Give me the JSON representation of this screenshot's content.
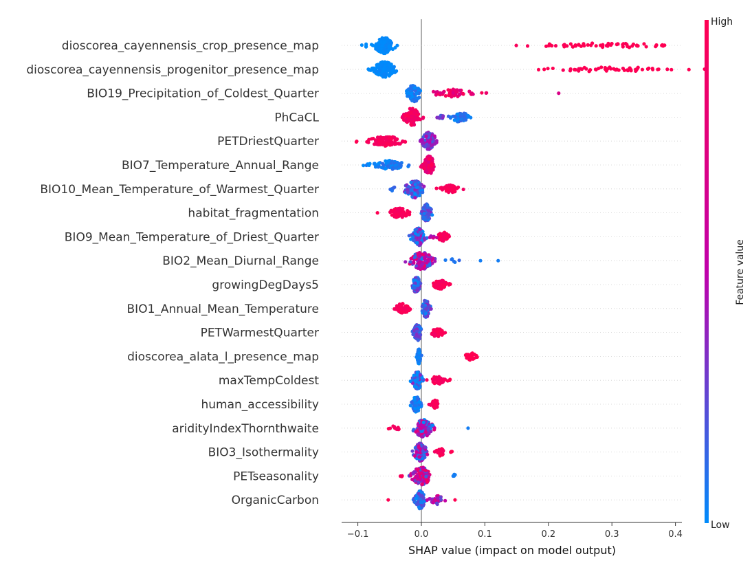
{
  "chart_data": {
    "type": "scatter",
    "subtype": "shap-beeswarm",
    "xlabel": "SHAP value (impact on model output)",
    "xlim": [
      -0.125,
      0.41
    ],
    "xticks": [
      -0.1,
      0.0,
      0.1,
      0.2,
      0.3,
      0.4
    ],
    "xtick_labels": [
      "−0.1",
      "0.0",
      "0.1",
      "0.2",
      "0.3",
      "0.4"
    ],
    "colorbar": {
      "label": "Feature value",
      "high": "High",
      "low": "Low",
      "low_color": "#008bfb",
      "high_color": "#ff0052"
    },
    "features": [
      {
        "name": "dioscorea_cayennensis_crop_presence_map",
        "clusters": [
          {
            "x": -0.058,
            "spread": 0.012,
            "n": 140,
            "color": 0.0,
            "cjit": 0.03,
            "height": 0.9
          },
          {
            "x": 0.29,
            "spread": 0.095,
            "n": 60,
            "color": 1.0,
            "cjit": 0.05,
            "height": 0.25
          },
          {
            "x": -0.08,
            "spread": 0.015,
            "n": 6,
            "color": 0.0,
            "cjit": 0.0,
            "height": 0.2
          },
          {
            "x": 0.378,
            "spread": 0.006,
            "n": 3,
            "color": 1.0,
            "cjit": 0.0,
            "height": 0.1
          }
        ]
      },
      {
        "name": "dioscorea_cayennensis_progenitor_presence_map",
        "clusters": [
          {
            "x": -0.058,
            "spread": 0.013,
            "n": 140,
            "color": 0.0,
            "cjit": 0.03,
            "height": 0.9
          },
          {
            "x": 0.29,
            "spread": 0.093,
            "n": 60,
            "color": 1.0,
            "cjit": 0.05,
            "height": 0.25
          },
          {
            "x": -0.082,
            "spread": 0.006,
            "n": 4,
            "color": 0.0,
            "cjit": 0.0,
            "height": 0.15
          }
        ]
      },
      {
        "name": "BIO19_Precipitation_of_Coldest_Quarter",
        "clusters": [
          {
            "x": -0.012,
            "spread": 0.008,
            "n": 90,
            "color": 0.05,
            "cjit": 0.08,
            "height": 1.0
          },
          {
            "x": 0.05,
            "spread": 0.025,
            "n": 55,
            "color": 0.85,
            "cjit": 0.15,
            "height": 0.45
          },
          {
            "x": 0.103,
            "spread": 0.003,
            "n": 2,
            "color": 0.85,
            "cjit": 0.0,
            "height": 0.1
          },
          {
            "x": 0.217,
            "spread": 0.001,
            "n": 1,
            "color": 0.7,
            "cjit": 0.0,
            "height": 0.0
          }
        ]
      },
      {
        "name": "PhCaCL",
        "clusters": [
          {
            "x": -0.015,
            "spread": 0.01,
            "n": 100,
            "color": 0.9,
            "cjit": 0.1,
            "height": 1.0
          },
          {
            "x": 0.06,
            "spread": 0.012,
            "n": 55,
            "color": 0.08,
            "cjit": 0.08,
            "height": 0.55
          },
          {
            "x": 0.03,
            "spread": 0.01,
            "n": 8,
            "color": 0.3,
            "cjit": 0.15,
            "height": 0.2
          }
        ]
      },
      {
        "name": "PETDriestQuarter",
        "clusters": [
          {
            "x": -0.055,
            "spread": 0.022,
            "n": 90,
            "color": 0.95,
            "cjit": 0.05,
            "height": 0.55
          },
          {
            "x": 0.012,
            "spread": 0.009,
            "n": 110,
            "color": 0.3,
            "cjit": 0.2,
            "height": 1.0
          },
          {
            "x": -0.102,
            "spread": 0.003,
            "n": 2,
            "color": 1.0,
            "cjit": 0.0,
            "height": 0.15
          }
        ]
      },
      {
        "name": "BIO7_Temperature_Annual_Range",
        "clusters": [
          {
            "x": -0.05,
            "spread": 0.022,
            "n": 80,
            "color": 0.05,
            "cjit": 0.08,
            "height": 0.5
          },
          {
            "x": 0.012,
            "spread": 0.008,
            "n": 110,
            "color": 0.85,
            "cjit": 0.15,
            "height": 1.0
          },
          {
            "x": -0.083,
            "spread": 0.002,
            "n": 3,
            "color": 0.0,
            "cjit": 0.0,
            "height": 0.15
          }
        ]
      },
      {
        "name": "BIO10_Mean_Temperature_of_Warmest_Quarter",
        "clusters": [
          {
            "x": -0.01,
            "spread": 0.012,
            "n": 110,
            "color": 0.2,
            "cjit": 0.25,
            "height": 1.0
          },
          {
            "x": 0.045,
            "spread": 0.011,
            "n": 55,
            "color": 0.95,
            "cjit": 0.05,
            "height": 0.45
          },
          {
            "x": -0.045,
            "spread": 0.004,
            "n": 6,
            "color": 0.1,
            "cjit": 0.05,
            "height": 0.25
          }
        ]
      },
      {
        "name": "habitat_fragmentation",
        "clusters": [
          {
            "x": -0.035,
            "spread": 0.012,
            "n": 70,
            "color": 0.95,
            "cjit": 0.05,
            "height": 0.55
          },
          {
            "x": 0.008,
            "spread": 0.006,
            "n": 110,
            "color": 0.2,
            "cjit": 0.2,
            "height": 1.0
          },
          {
            "x": -0.07,
            "spread": 0.001,
            "n": 1,
            "color": 1.0,
            "cjit": 0.0,
            "height": 0.0
          }
        ]
      },
      {
        "name": "BIO9_Mean_Temperature_of_Driest_Quarter",
        "clusters": [
          {
            "x": -0.005,
            "spread": 0.008,
            "n": 110,
            "color": 0.2,
            "cjit": 0.25,
            "height": 1.0
          },
          {
            "x": 0.035,
            "spread": 0.008,
            "n": 45,
            "color": 0.95,
            "cjit": 0.05,
            "height": 0.5
          },
          {
            "x": 0.02,
            "spread": 0.006,
            "n": 6,
            "color": 0.6,
            "cjit": 0.2,
            "height": 0.2
          }
        ]
      },
      {
        "name": "BIO2_Mean_Diurnal_Range",
        "clusters": [
          {
            "x": 0.0,
            "spread": 0.014,
            "n": 150,
            "color": 0.5,
            "cjit": 0.45,
            "height": 1.0
          },
          {
            "x": 0.05,
            "spread": 0.01,
            "n": 6,
            "color": 0.1,
            "cjit": 0.05,
            "height": 0.25
          },
          {
            "x": 0.093,
            "spread": 0.001,
            "n": 1,
            "color": 0.05,
            "cjit": 0.0,
            "height": 0.0
          },
          {
            "x": 0.122,
            "spread": 0.001,
            "n": 1,
            "color": 0.05,
            "cjit": 0.0,
            "height": 0.0
          }
        ]
      },
      {
        "name": "growingDegDays5",
        "clusters": [
          {
            "x": -0.008,
            "spread": 0.005,
            "n": 90,
            "color": 0.15,
            "cjit": 0.2,
            "height": 0.9
          },
          {
            "x": 0.03,
            "spread": 0.009,
            "n": 55,
            "color": 0.95,
            "cjit": 0.05,
            "height": 0.5
          }
        ]
      },
      {
        "name": "BIO1_Annual_Mean_Temperature",
        "clusters": [
          {
            "x": -0.03,
            "spread": 0.009,
            "n": 70,
            "color": 0.95,
            "cjit": 0.05,
            "height": 0.55
          },
          {
            "x": 0.007,
            "spread": 0.005,
            "n": 100,
            "color": 0.2,
            "cjit": 0.2,
            "height": 1.0
          }
        ]
      },
      {
        "name": "PETWarmestQuarter",
        "clusters": [
          {
            "x": -0.006,
            "spread": 0.005,
            "n": 90,
            "color": 0.15,
            "cjit": 0.2,
            "height": 0.9
          },
          {
            "x": 0.025,
            "spread": 0.008,
            "n": 50,
            "color": 0.95,
            "cjit": 0.05,
            "height": 0.5
          }
        ]
      },
      {
        "name": "dioscorea_alata_l_presence_map",
        "clusters": [
          {
            "x": -0.004,
            "spread": 0.002,
            "n": 80,
            "color": 0.05,
            "cjit": 0.05,
            "height": 0.85
          },
          {
            "x": 0.077,
            "spread": 0.008,
            "n": 40,
            "color": 1.0,
            "cjit": 0.0,
            "height": 0.4
          }
        ]
      },
      {
        "name": "maxTempColdest",
        "clusters": [
          {
            "x": -0.006,
            "spread": 0.006,
            "n": 100,
            "color": 0.15,
            "cjit": 0.25,
            "height": 1.0
          },
          {
            "x": 0.025,
            "spread": 0.009,
            "n": 45,
            "color": 0.95,
            "cjit": 0.05,
            "height": 0.45
          },
          {
            "x": 0.045,
            "spread": 0.002,
            "n": 2,
            "color": 1.0,
            "cjit": 0.0,
            "height": 0.1
          }
        ]
      },
      {
        "name": "human_accessibility",
        "clusters": [
          {
            "x": -0.008,
            "spread": 0.006,
            "n": 90,
            "color": 0.05,
            "cjit": 0.1,
            "height": 0.9
          },
          {
            "x": 0.022,
            "spread": 0.006,
            "n": 40,
            "color": 0.95,
            "cjit": 0.05,
            "height": 0.45
          }
        ]
      },
      {
        "name": "aridityIndexThornthwaite",
        "clusters": [
          {
            "x": 0.003,
            "spread": 0.012,
            "n": 140,
            "color": 0.4,
            "cjit": 0.45,
            "height": 1.0
          },
          {
            "x": -0.04,
            "spread": 0.01,
            "n": 10,
            "color": 0.95,
            "cjit": 0.05,
            "height": 0.3
          },
          {
            "x": 0.073,
            "spread": 0.001,
            "n": 1,
            "color": 0.05,
            "cjit": 0.0,
            "height": 0.0
          }
        ]
      },
      {
        "name": "BIO3_Isothermality",
        "clusters": [
          {
            "x": -0.002,
            "spread": 0.008,
            "n": 110,
            "color": 0.35,
            "cjit": 0.35,
            "height": 1.0
          },
          {
            "x": 0.03,
            "spread": 0.005,
            "n": 25,
            "color": 0.95,
            "cjit": 0.05,
            "height": 0.45
          },
          {
            "x": 0.048,
            "spread": 0.002,
            "n": 3,
            "color": 1.0,
            "cjit": 0.0,
            "height": 0.1
          }
        ]
      },
      {
        "name": "PETseasonality",
        "clusters": [
          {
            "x": 0.0,
            "spread": 0.012,
            "n": 140,
            "color": 0.55,
            "cjit": 0.4,
            "height": 1.0
          },
          {
            "x": 0.052,
            "spread": 0.003,
            "n": 4,
            "color": 0.05,
            "cjit": 0.0,
            "height": 0.2
          },
          {
            "x": -0.03,
            "spread": 0.003,
            "n": 3,
            "color": 0.95,
            "cjit": 0.0,
            "height": 0.1
          }
        ]
      },
      {
        "name": "OrganicCarbon",
        "clusters": [
          {
            "x": -0.002,
            "spread": 0.006,
            "n": 130,
            "color": 0.15,
            "cjit": 0.15,
            "height": 1.0
          },
          {
            "x": 0.025,
            "spread": 0.008,
            "n": 30,
            "color": 0.55,
            "cjit": 0.35,
            "height": 0.5
          },
          {
            "x": -0.052,
            "spread": 0.001,
            "n": 1,
            "color": 1.0,
            "cjit": 0.0,
            "height": 0.0
          },
          {
            "x": 0.052,
            "spread": 0.001,
            "n": 1,
            "color": 1.0,
            "cjit": 0.0,
            "height": 0.0
          }
        ]
      }
    ]
  }
}
